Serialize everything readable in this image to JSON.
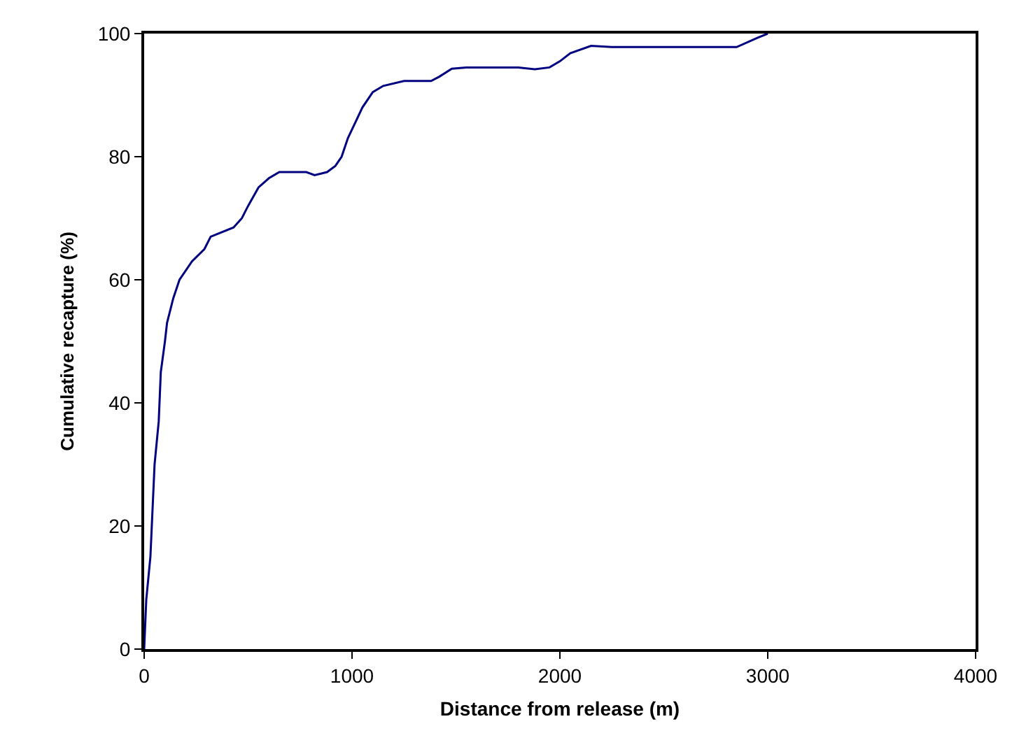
{
  "chart_data": {
    "type": "line",
    "xlabel": "Distance from release (m)",
    "ylabel": "Cumulative recapture (%)",
    "xlim": [
      0,
      4000
    ],
    "xticks": [
      0,
      1000,
      2000,
      3000,
      4000
    ],
    "ylim": [
      0,
      100
    ],
    "yticks": [
      0,
      20,
      40,
      60,
      80,
      100
    ],
    "grid": false,
    "legend": false,
    "marker": "none",
    "line_style": "solid",
    "series": [
      {
        "color": "#000080",
        "x": [
          0,
          10,
          30,
          50,
          70,
          80,
          100,
          110,
          140,
          170,
          230,
          290,
          320,
          430,
          470,
          500,
          550,
          600,
          650,
          780,
          820,
          880,
          920,
          950,
          980,
          1050,
          1100,
          1150,
          1250,
          1380,
          1420,
          1480,
          1550,
          1800,
          1880,
          1950,
          2000,
          2050,
          2150,
          2250,
          2400,
          2850,
          2950,
          3000
        ],
        "values": [
          0,
          8,
          15,
          30,
          37,
          45,
          50,
          53,
          57,
          60,
          63,
          65,
          67,
          68.5,
          70,
          72,
          75,
          76.5,
          77.5,
          77.5,
          77,
          77.5,
          78.5,
          80,
          83,
          88,
          90.5,
          91.5,
          92.3,
          92.3,
          93,
          94.3,
          94.5,
          94.5,
          94.2,
          94.5,
          95.5,
          96.8,
          98,
          97.8,
          97.8,
          97.8,
          99.3,
          100
        ]
      }
    ]
  }
}
